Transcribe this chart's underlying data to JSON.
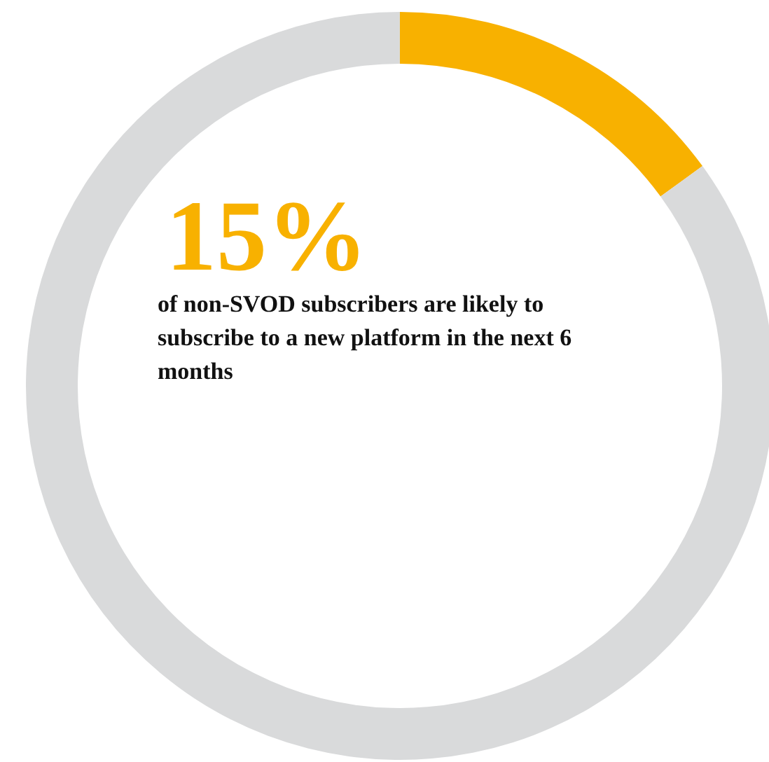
{
  "chart_data": {
    "type": "donut",
    "categories": [
      null,
      null
    ],
    "values": [
      15,
      85
    ],
    "colors": [
      "#f8b100",
      "#d9dadb"
    ],
    "annotations": [
      "15%",
      "of non-SVOD subscribers are likely to subscribe to a new platform in the next 6 months"
    ]
  }
}
